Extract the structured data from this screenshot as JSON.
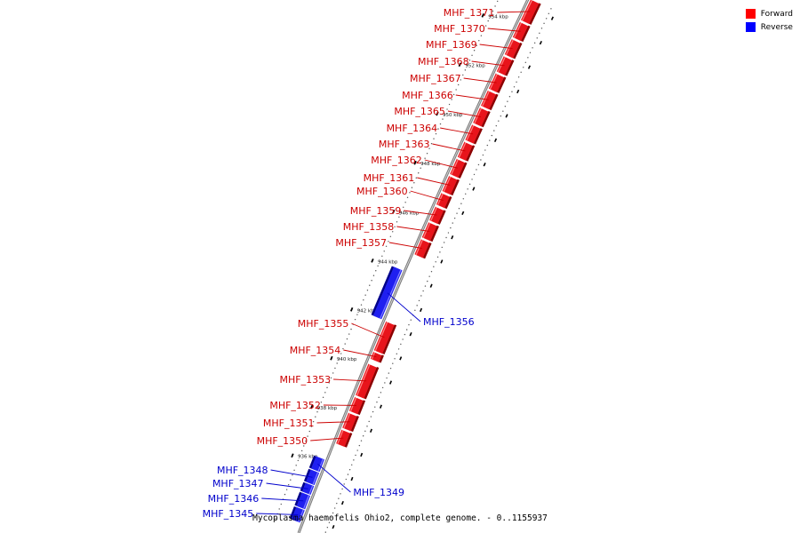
{
  "caption": "Mycoplasma haemofelis Ohio2, complete genome. - 0..1155937",
  "legend": [
    {
      "label": "Forward",
      "color": "#ff0000"
    },
    {
      "label": "Reverse",
      "color": "#0000ff"
    }
  ],
  "colors": {
    "forward": "#e8141b",
    "reverse": "#1f1ff0",
    "forward_label": "#cc0000",
    "reverse_label": "#0000cc"
  },
  "ticks": [
    {
      "kbp": 936,
      "label": "936 kbp"
    },
    {
      "kbp": 938,
      "label": "938 kbp"
    },
    {
      "kbp": 940,
      "label": "940 kbp"
    },
    {
      "kbp": 942,
      "label": "942 kbp"
    },
    {
      "kbp": 944,
      "label": "944 kbp"
    },
    {
      "kbp": 946,
      "label": "946 kbp"
    },
    {
      "kbp": 948,
      "label": "948 kbp"
    },
    {
      "kbp": 950,
      "label": "950 kbp"
    },
    {
      "kbp": 952,
      "label": "952 kbp"
    },
    {
      "kbp": 954,
      "label": "954 kbp"
    }
  ],
  "genes": [
    {
      "name": "MHF_1371",
      "strand": "forward",
      "start_kbp": 954.45,
      "end_kbp": 955.3
    },
    {
      "name": "MHF_1370",
      "strand": "forward",
      "start_kbp": 953.75,
      "end_kbp": 954.38
    },
    {
      "name": "MHF_1369",
      "strand": "forward",
      "start_kbp": 953.05,
      "end_kbp": 953.68
    },
    {
      "name": "MHF_1368",
      "strand": "forward",
      "start_kbp": 952.35,
      "end_kbp": 952.98
    },
    {
      "name": "MHF_1367",
      "strand": "forward",
      "start_kbp": 951.65,
      "end_kbp": 952.28
    },
    {
      "name": "MHF_1366",
      "strand": "forward",
      "start_kbp": 950.95,
      "end_kbp": 951.58
    },
    {
      "name": "MHF_1365",
      "strand": "forward",
      "start_kbp": 950.25,
      "end_kbp": 950.88
    },
    {
      "name": "MHF_1364",
      "strand": "forward",
      "start_kbp": 949.55,
      "end_kbp": 950.18
    },
    {
      "name": "MHF_1363",
      "strand": "forward",
      "start_kbp": 948.85,
      "end_kbp": 949.48
    },
    {
      "name": "MHF_1362",
      "strand": "forward",
      "start_kbp": 948.15,
      "end_kbp": 948.78
    },
    {
      "name": "MHF_1361",
      "strand": "forward",
      "start_kbp": 947.45,
      "end_kbp": 948.08
    },
    {
      "name": "MHF_1360",
      "strand": "forward",
      "start_kbp": 946.9,
      "end_kbp": 947.38
    },
    {
      "name": "MHF_1359",
      "strand": "forward",
      "start_kbp": 946.25,
      "end_kbp": 946.82
    },
    {
      "name": "MHF_1358",
      "strand": "forward",
      "start_kbp": 945.55,
      "end_kbp": 946.18
    },
    {
      "name": "MHF_1357",
      "strand": "forward",
      "start_kbp": 944.85,
      "end_kbp": 945.48
    },
    {
      "name": "MHF_1356",
      "strand": "reverse",
      "start_kbp": 942.1,
      "end_kbp": 944.1
    },
    {
      "name": "MHF_1355",
      "strand": "forward",
      "start_kbp": 940.9,
      "end_kbp": 942.1
    },
    {
      "name": "MHF_1354",
      "strand": "forward",
      "start_kbp": 940.55,
      "end_kbp": 940.85
    },
    {
      "name": "MHF_1353",
      "strand": "forward",
      "start_kbp": 939.05,
      "end_kbp": 940.35
    },
    {
      "name": "MHF_1352",
      "strand": "forward",
      "start_kbp": 938.4,
      "end_kbp": 938.98
    },
    {
      "name": "MHF_1351",
      "strand": "forward",
      "start_kbp": 937.7,
      "end_kbp": 938.33
    },
    {
      "name": "MHF_1350",
      "strand": "forward",
      "start_kbp": 937.05,
      "end_kbp": 937.63
    },
    {
      "name": "MHF_1349",
      "strand": "reverse",
      "start_kbp": 935.8,
      "end_kbp": 936.3
    },
    {
      "name": "MHF_1348",
      "strand": "reverse",
      "start_kbp": 935.25,
      "end_kbp": 935.75
    },
    {
      "name": "MHF_1347",
      "strand": "reverse",
      "start_kbp": 934.85,
      "end_kbp": 935.2
    },
    {
      "name": "MHF_1346",
      "strand": "reverse",
      "start_kbp": 934.25,
      "end_kbp": 934.8
    },
    {
      "name": "MHF_1345",
      "strand": "reverse",
      "start_kbp": 933.7,
      "end_kbp": 934.2
    }
  ]
}
